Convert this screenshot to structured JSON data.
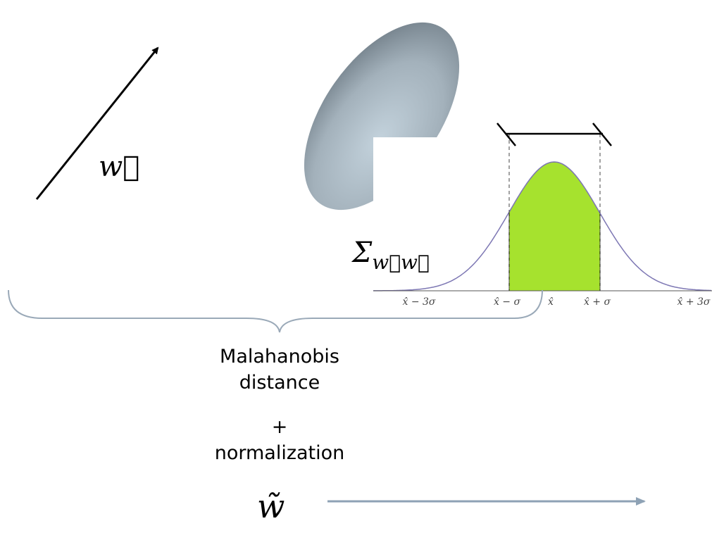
{
  "labels": {
    "w_vector": "w⃗",
    "covariance": {
      "symbol": "Σ",
      "subscript": "w⃗w⃗"
    },
    "gaussian_ticks": [
      "x̂ − 3σ",
      "x̂ − σ",
      "x̂",
      "x̂ + σ",
      "x̂ + 3σ"
    ],
    "caption": {
      "line1": "Malahanobis",
      "line2": "distance",
      "plus": "+",
      "line3": "normalization"
    },
    "w_normalized": "w̃"
  }
}
